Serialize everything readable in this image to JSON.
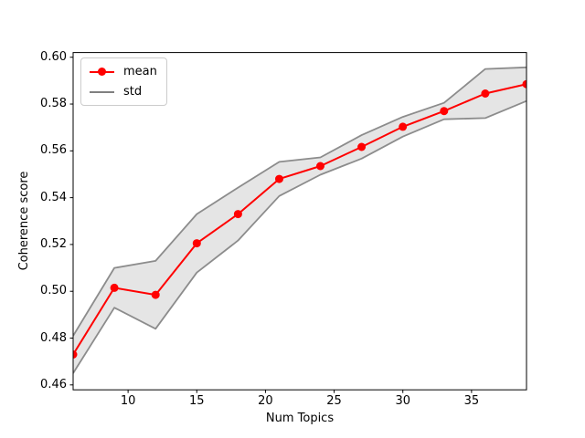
{
  "chart_data": {
    "type": "line",
    "title": "",
    "xlabel": "Num Topics",
    "ylabel": "Coherence score",
    "x": [
      6,
      9,
      12,
      15,
      18,
      21,
      24,
      27,
      30,
      33,
      36,
      39
    ],
    "series": [
      {
        "name": "mean",
        "style": "line-with-circle-markers",
        "color": "#ff0000",
        "values": [
          0.473,
          0.5015,
          0.4985,
          0.5205,
          0.533,
          0.548,
          0.5535,
          0.5617,
          0.5703,
          0.577,
          0.5845,
          0.5885
        ]
      },
      {
        "name": "std",
        "style": "band-around-mean",
        "edge_color": "#8c8c8c",
        "fill_color": "#e5e5e5",
        "std_values": [
          0.008,
          0.0085,
          0.0145,
          0.0125,
          0.0113,
          0.0073,
          0.0037,
          0.005,
          0.0042,
          0.0035,
          0.0105,
          0.0072
        ]
      }
    ],
    "xticks": [
      10,
      15,
      20,
      25,
      30,
      35
    ],
    "yticks": [
      0.46,
      0.48,
      0.5,
      0.52,
      0.54,
      0.56,
      0.58,
      0.6
    ],
    "xlim": [
      6,
      39
    ],
    "ylim": [
      0.4579,
      0.602
    ],
    "grid": false,
    "legend": {
      "position": "upper left",
      "entries": [
        {
          "label": "mean",
          "handle": "red-line-with-dot"
        },
        {
          "label": "std",
          "handle": "gray-line"
        }
      ]
    }
  },
  "colors": {
    "mean_line": "#ff0000",
    "band_fill": "#e5e5e5",
    "band_edge": "#8c8c8c",
    "legend_gray": "#808080",
    "spine": "#000000"
  }
}
